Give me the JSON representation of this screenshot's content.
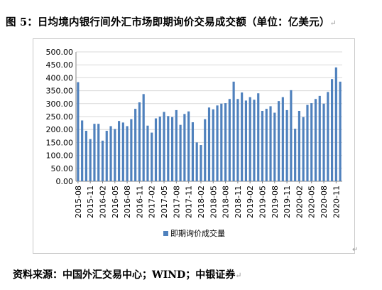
{
  "figure": {
    "title": "图 5：日均境内银行间外汇市场即期询价交易成交额（单位：亿美元）",
    "source": "资料来源：中国外汇交易中心；WIND；中银证券"
  },
  "chart_data": {
    "type": "bar",
    "title": "",
    "xlabel": "",
    "ylabel": "",
    "ylim": [
      0,
      500
    ],
    "yticks": [
      "0.00",
      "50.00",
      "100.00",
      "150.00",
      "200.00",
      "250.00",
      "300.00",
      "350.00",
      "400.00",
      "450.00",
      "500.00"
    ],
    "xtick_labels": [
      "2015-08",
      "2015-11",
      "2016-02",
      "2016-05",
      "2016-08",
      "2016-11",
      "2017-02",
      "2017-05",
      "2017-08",
      "2017-11",
      "2018-02",
      "2018-05",
      "2018-08",
      "2018-11",
      "2019-02",
      "2019-05",
      "2019-08",
      "2019-11",
      "2020-02",
      "2020-05",
      "2020-08",
      "2020-11"
    ],
    "grid": true,
    "legend": "bottom",
    "color": "#4f81bd",
    "categories": [
      "2015-08",
      "2015-09",
      "2015-10",
      "2015-11",
      "2015-12",
      "2016-01",
      "2016-02",
      "2016-03",
      "2016-04",
      "2016-05",
      "2016-06",
      "2016-07",
      "2016-08",
      "2016-09",
      "2016-10",
      "2016-11",
      "2016-12",
      "2017-01",
      "2017-02",
      "2017-03",
      "2017-04",
      "2017-05",
      "2017-06",
      "2017-07",
      "2017-08",
      "2017-09",
      "2017-10",
      "2017-11",
      "2017-12",
      "2018-01",
      "2018-02",
      "2018-03",
      "2018-04",
      "2018-05",
      "2018-06",
      "2018-07",
      "2018-08",
      "2018-09",
      "2018-10",
      "2018-11",
      "2018-12",
      "2019-01",
      "2019-02",
      "2019-03",
      "2019-04",
      "2019-05",
      "2019-06",
      "2019-07",
      "2019-08",
      "2019-09",
      "2019-10",
      "2019-11",
      "2019-12",
      "2020-01",
      "2020-02",
      "2020-03",
      "2020-04",
      "2020-05",
      "2020-06",
      "2020-07",
      "2020-08",
      "2020-09",
      "2020-10",
      "2020-11",
      "2020-12"
    ],
    "series": [
      {
        "name": "即期询价成交量",
        "values": [
          383,
          235,
          195,
          163,
          222,
          222,
          157,
          195,
          213,
          202,
          233,
          227,
          213,
          240,
          280,
          305,
          337,
          215,
          188,
          243,
          250,
          268,
          252,
          248,
          275,
          218,
          260,
          270,
          228,
          150,
          140,
          240,
          285,
          278,
          293,
          300,
          302,
          318,
          385,
          318,
          343,
          312,
          325,
          315,
          340,
          272,
          280,
          290,
          265,
          310,
          325,
          275,
          352,
          203,
          272,
          248,
          295,
          302,
          318,
          330,
          300,
          345,
          395,
          440,
          385
        ]
      }
    ]
  }
}
